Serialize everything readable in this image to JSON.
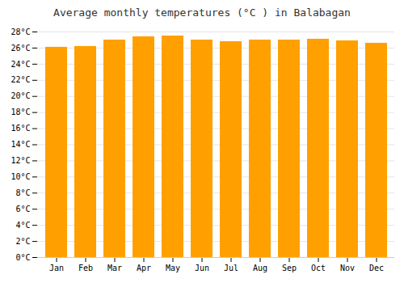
{
  "chart_data": {
    "type": "bar",
    "title": "Average monthly temperatures (°C ) in Balabagan",
    "categories": [
      "Jan",
      "Feb",
      "Mar",
      "Apr",
      "May",
      "Jun",
      "Jul",
      "Aug",
      "Sep",
      "Oct",
      "Nov",
      "Dec"
    ],
    "values": [
      26.1,
      26.2,
      27.0,
      27.4,
      27.5,
      27.0,
      26.8,
      27.0,
      27.0,
      27.1,
      26.9,
      26.6
    ],
    "color": "#FFA000",
    "ylim": [
      0,
      28
    ],
    "yticks": [
      {
        "value": 0,
        "label": "0°C"
      },
      {
        "value": 2,
        "label": "2°C"
      },
      {
        "value": 4,
        "label": "4°C"
      },
      {
        "value": 6,
        "label": "6°C"
      },
      {
        "value": 8,
        "label": "8°C"
      },
      {
        "value": 10,
        "label": "10°C"
      },
      {
        "value": 12,
        "label": "12°C"
      },
      {
        "value": 14,
        "label": "14°C"
      },
      {
        "value": 16,
        "label": "16°C"
      },
      {
        "value": 18,
        "label": "18°C"
      },
      {
        "value": 20,
        "label": "20°C"
      },
      {
        "value": 22,
        "label": "22°C"
      },
      {
        "value": 24,
        "label": "24°C"
      },
      {
        "value": 26,
        "label": "26°C"
      },
      {
        "value": 28,
        "label": "28°C"
      }
    ],
    "grid": true
  }
}
